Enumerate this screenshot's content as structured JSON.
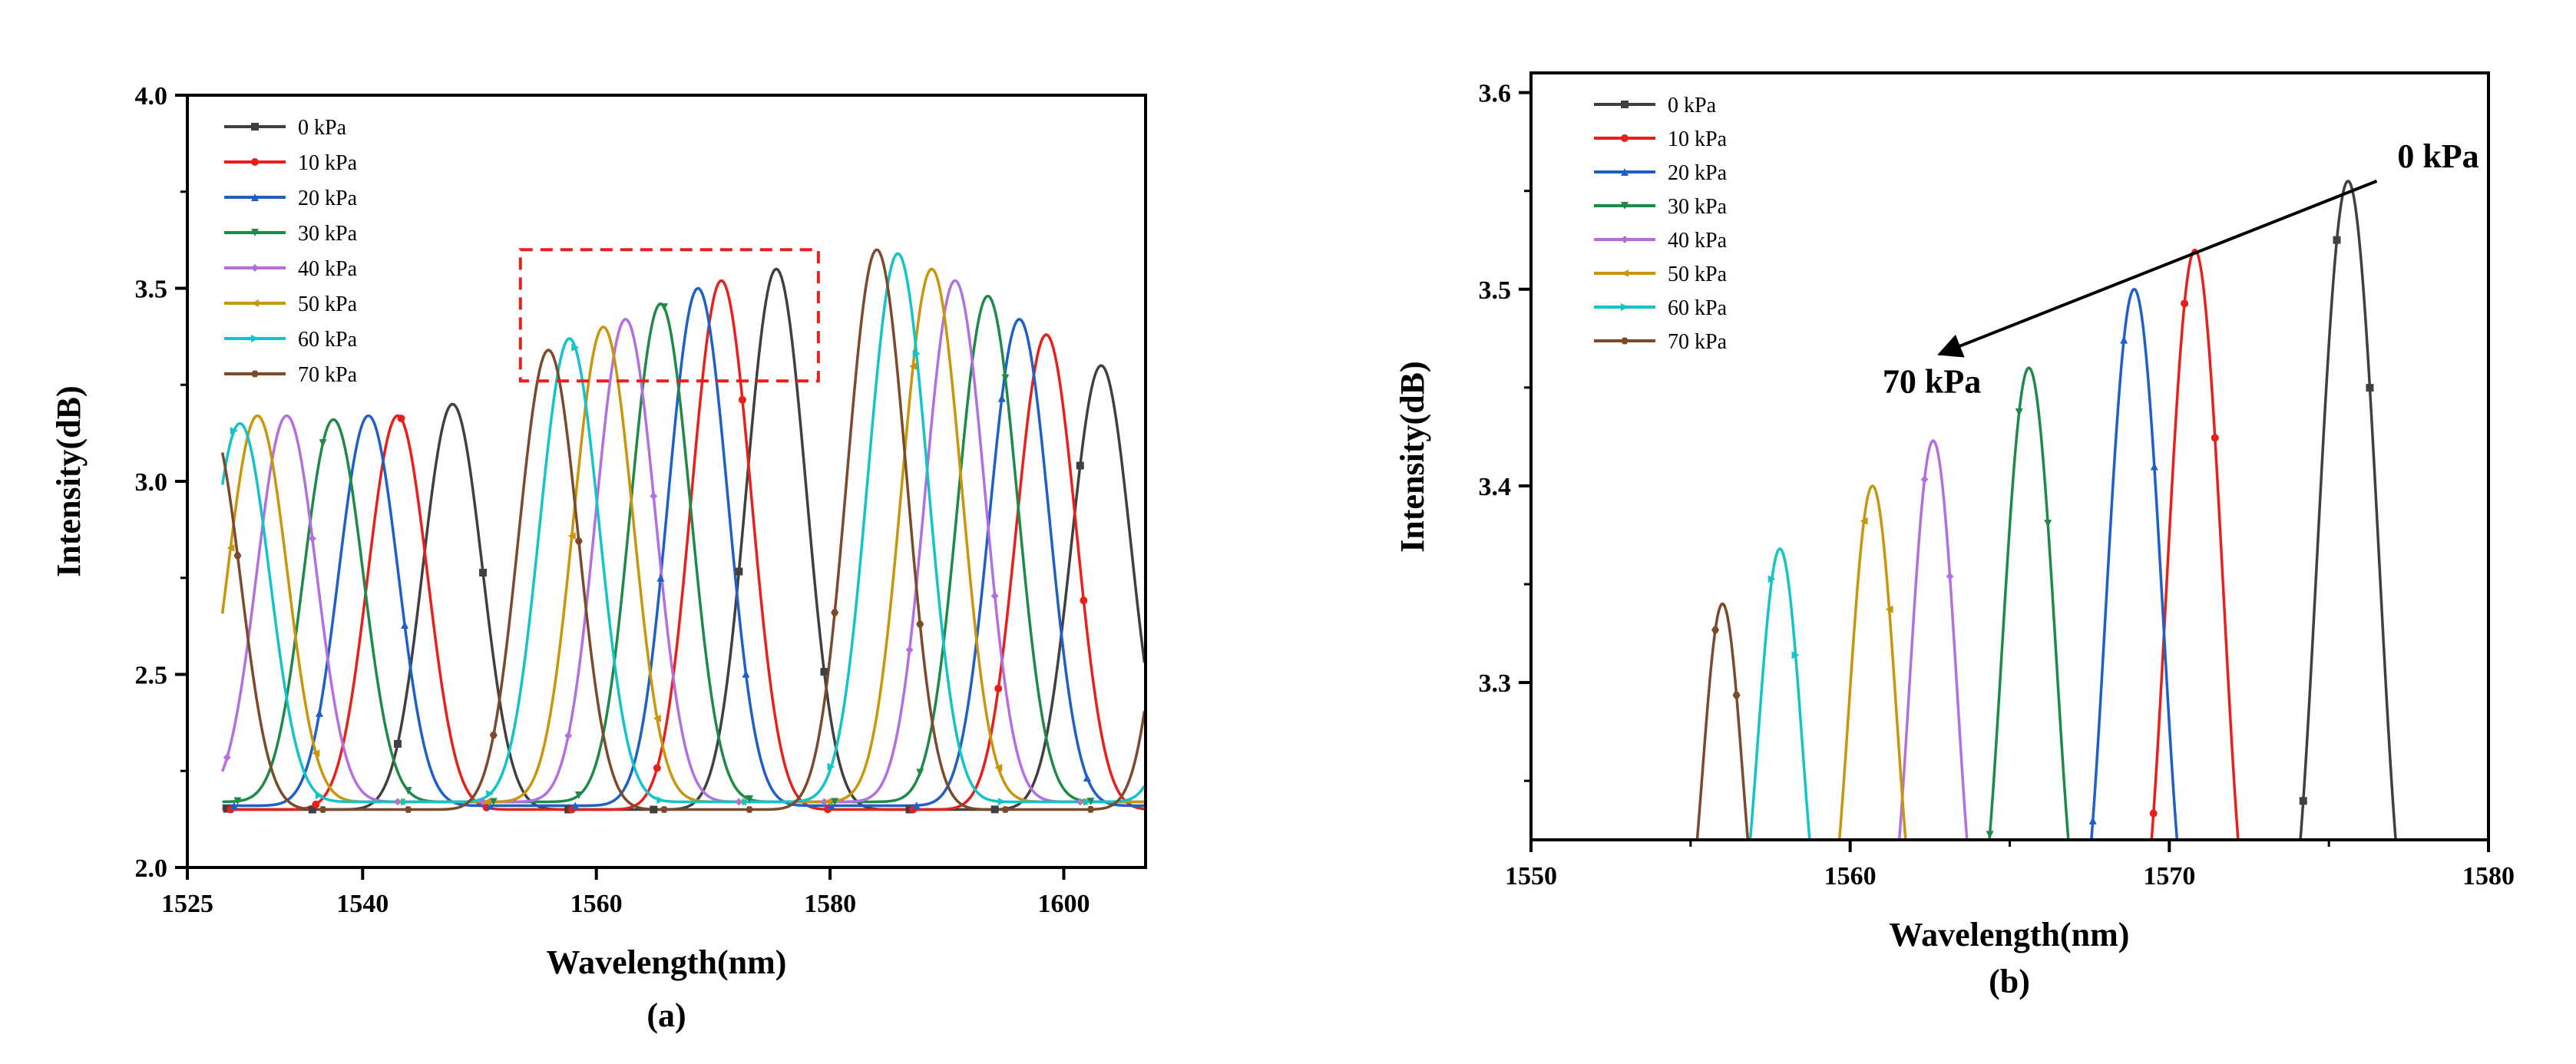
{
  "chart_data": [
    {
      "type": "line",
      "panel": "a",
      "caption": "(a)",
      "title": "",
      "xlabel": "Wavelength(nm)",
      "ylabel": "Intensity(dB)",
      "xlim": [
        1525,
        1607
      ],
      "ylim": [
        2.0,
        4.0
      ],
      "xticks": [
        "1525",
        "1540",
        "1560",
        "1580",
        "1600"
      ],
      "yticks": [
        "2.0",
        "2.5",
        "3.0",
        "3.5",
        "4.0"
      ],
      "legend_position": "top-left",
      "highlight_box": {
        "x_range": [
          1553.5,
          1579
        ],
        "y_range": [
          3.26,
          3.6
        ],
        "style": "red-dashed"
      },
      "peak_period_nm": 27.5,
      "series": [
        {
          "name": "0 kPa",
          "color": "#404040",
          "marker": "square",
          "peak_wavelengths": [
            1547.7,
            1575.4,
            1603.2
          ],
          "peak_values": [
            3.2,
            3.55,
            3.3
          ],
          "valley_value": 2.15
        },
        {
          "name": "10 kPa",
          "color": "#e8201c",
          "marker": "circle",
          "peak_wavelengths": [
            1543.0,
            1570.7,
            1598.5
          ],
          "peak_values": [
            3.17,
            3.52,
            3.38
          ],
          "valley_value": 2.15
        },
        {
          "name": "20 kPa",
          "color": "#1f5fc8",
          "marker": "triangle-up",
          "peak_wavelengths": [
            1540.5,
            1568.7,
            1596.2
          ],
          "peak_values": [
            3.17,
            3.5,
            3.42
          ],
          "valley_value": 2.16
        },
        {
          "name": "30 kPa",
          "color": "#1f8a48",
          "marker": "triangle-down",
          "peak_wavelengths": [
            1537.5,
            1565.5,
            1593.5
          ],
          "peak_values": [
            3.16,
            3.46,
            3.48
          ],
          "valley_value": 2.17
        },
        {
          "name": "40 kPa",
          "color": "#b36fe0",
          "marker": "diamond",
          "peak_wavelengths": [
            1533.5,
            1562.5,
            1590.7
          ],
          "peak_values": [
            3.17,
            3.42,
            3.52
          ],
          "valley_value": 2.17
        },
        {
          "name": "50 kPa",
          "color": "#c8960c",
          "marker": "triangle-left",
          "peak_wavelengths": [
            1531.0,
            1560.6,
            1588.7
          ],
          "peak_values": [
            3.17,
            3.4,
            3.55
          ],
          "valley_value": 2.17
        },
        {
          "name": "60 kPa",
          "color": "#12c3c8",
          "marker": "triangle-right",
          "peak_wavelengths": [
            1529.5,
            1557.7,
            1585.8
          ],
          "peak_values": [
            3.15,
            3.37,
            3.59
          ],
          "valley_value": 2.17
        },
        {
          "name": "70 kPa",
          "color": "#7a4a2a",
          "marker": "hexagon",
          "peak_wavelengths": [
            1527.0,
            1555.9,
            1584.0
          ],
          "peak_values": [
            3.15,
            3.34,
            3.6
          ],
          "valley_value": 2.15
        }
      ]
    },
    {
      "type": "line",
      "panel": "b",
      "caption": "(b)",
      "title": "",
      "xlabel": "Wavelength(nm)",
      "ylabel": "Intensity(dB)",
      "xlim": [
        1550,
        1580
      ],
      "ylim": [
        3.22,
        3.61
      ],
      "xticks": [
        "1550",
        "1560",
        "1570",
        "1580"
      ],
      "yticks": [
        "3.3",
        "3.4",
        "3.5",
        "3.6"
      ],
      "legend_position": "top-left",
      "annotations": {
        "start_label": "0 kPa",
        "end_label": "70 kPa",
        "arrow_from": [
          1576.5,
          3.555
        ],
        "arrow_to": [
          1562.8,
          3.467
        ]
      },
      "series": [
        {
          "name": "0 kPa",
          "color": "#404040",
          "marker": "square",
          "peak_wavelength": 1575.6,
          "peak_value": 3.555,
          "half_width_nm": 1.95
        },
        {
          "name": "10 kPa",
          "color": "#e8201c",
          "marker": "circle",
          "peak_wavelength": 1570.8,
          "peak_value": 3.52,
          "half_width_nm": 1.8
        },
        {
          "name": "20 kPa",
          "color": "#1f5fc8",
          "marker": "triangle-up",
          "peak_wavelength": 1568.9,
          "peak_value": 3.5,
          "half_width_nm": 1.8
        },
        {
          "name": "30 kPa",
          "color": "#1f8a48",
          "marker": "triangle-down",
          "peak_wavelength": 1565.6,
          "peak_value": 3.46,
          "half_width_nm": 1.7
        },
        {
          "name": "40 kPa",
          "color": "#b36fe0",
          "marker": "diamond",
          "peak_wavelength": 1562.6,
          "peak_value": 3.423,
          "half_width_nm": 1.5
        },
        {
          "name": "50 kPa",
          "color": "#c8960c",
          "marker": "triangle-left",
          "peak_wavelength": 1560.7,
          "peak_value": 3.4,
          "half_width_nm": 1.5
        },
        {
          "name": "60 kPa",
          "color": "#12c3c8",
          "marker": "triangle-right",
          "peak_wavelength": 1557.8,
          "peak_value": 3.368,
          "half_width_nm": 1.4
        },
        {
          "name": "70 kPa",
          "color": "#7a4a2a",
          "marker": "hexagon",
          "peak_wavelength": 1556.0,
          "peak_value": 3.34,
          "half_width_nm": 1.25
        }
      ]
    }
  ]
}
